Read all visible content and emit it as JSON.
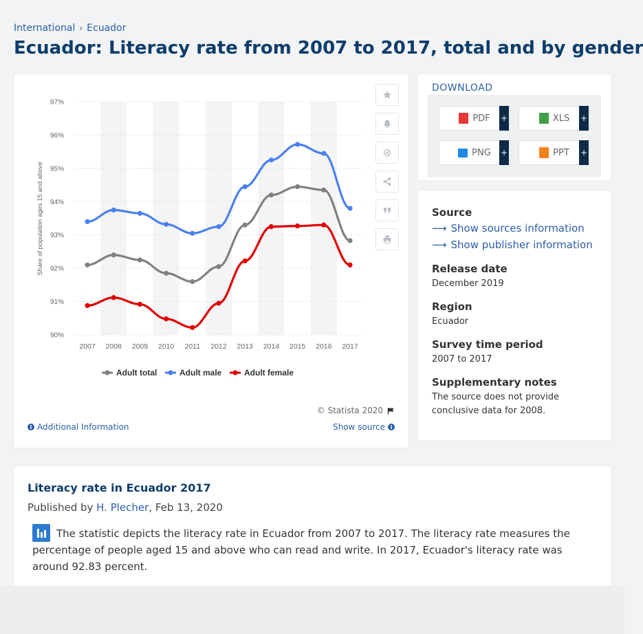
{
  "breadcrumb": {
    "items": [
      "International",
      "Ecuador"
    ]
  },
  "page_title": "Ecuador: Literacy rate from 2007 to 2017, total and by gender",
  "chart_data": {
    "type": "line",
    "x": [
      "2007",
      "2008",
      "2009",
      "2010",
      "2011",
      "2012",
      "2013",
      "2014",
      "2015",
      "2016",
      "2017"
    ],
    "ylabel": "Share of population ages 15 and above",
    "ylim": [
      90,
      97
    ],
    "yticks": [
      "97%",
      "96%",
      "95%",
      "94%",
      "93%",
      "92%",
      "91%",
      "90%"
    ],
    "grid": true,
    "legend_position": "bottom",
    "series": [
      {
        "name": "Adult total",
        "color": "#808080",
        "values": [
          92.1,
          92.4,
          92.25,
          91.85,
          91.6,
          92.05,
          93.3,
          94.2,
          94.45,
          94.35,
          92.83
        ]
      },
      {
        "name": "Adult male",
        "color": "#4a80f0",
        "values": [
          93.4,
          93.75,
          93.65,
          93.32,
          93.05,
          93.25,
          94.45,
          95.25,
          95.72,
          95.45,
          93.8
        ]
      },
      {
        "name": "Adult female",
        "color": "#e10000",
        "values": [
          90.88,
          91.12,
          90.92,
          90.48,
          90.22,
          90.95,
          92.22,
          93.25,
          93.27,
          93.3,
          92.1
        ]
      }
    ]
  },
  "chart_footer": {
    "copyright": "© Statista 2020",
    "additional_info": "Additional Information",
    "show_source": "Show source"
  },
  "download": {
    "title": "DOWNLOAD",
    "formats": [
      {
        "label": "PDF",
        "color": "#e53935"
      },
      {
        "label": "XLS",
        "color": "#43a047"
      },
      {
        "label": "PNG",
        "color": "#1e88e5"
      },
      {
        "label": "PPT",
        "color": "#f4811f"
      }
    ],
    "plus": "+"
  },
  "info": {
    "source_label": "Source",
    "show_sources": "Show sources information",
    "show_publisher": "Show publisher information",
    "release_label": "Release date",
    "release_value": "December 2019",
    "region_label": "Region",
    "region_value": "Ecuador",
    "period_label": "Survey time period",
    "period_value": "2007 to 2017",
    "notes_label": "Supplementary notes",
    "notes_value": "The source does not provide conclusive data for 2008."
  },
  "description": {
    "title": "Literacy rate in Ecuador 2017",
    "published_by": "Published by ",
    "author": "H. Plecher",
    "date": ", Feb 13, 2020",
    "text": "The statistic depicts the literacy rate in Ecuador from 2007 to 2017. The literacy rate measures the percentage of people aged 15 and above who can read and write. In 2017, Ecuador's literacy rate was around 92.83 percent."
  }
}
